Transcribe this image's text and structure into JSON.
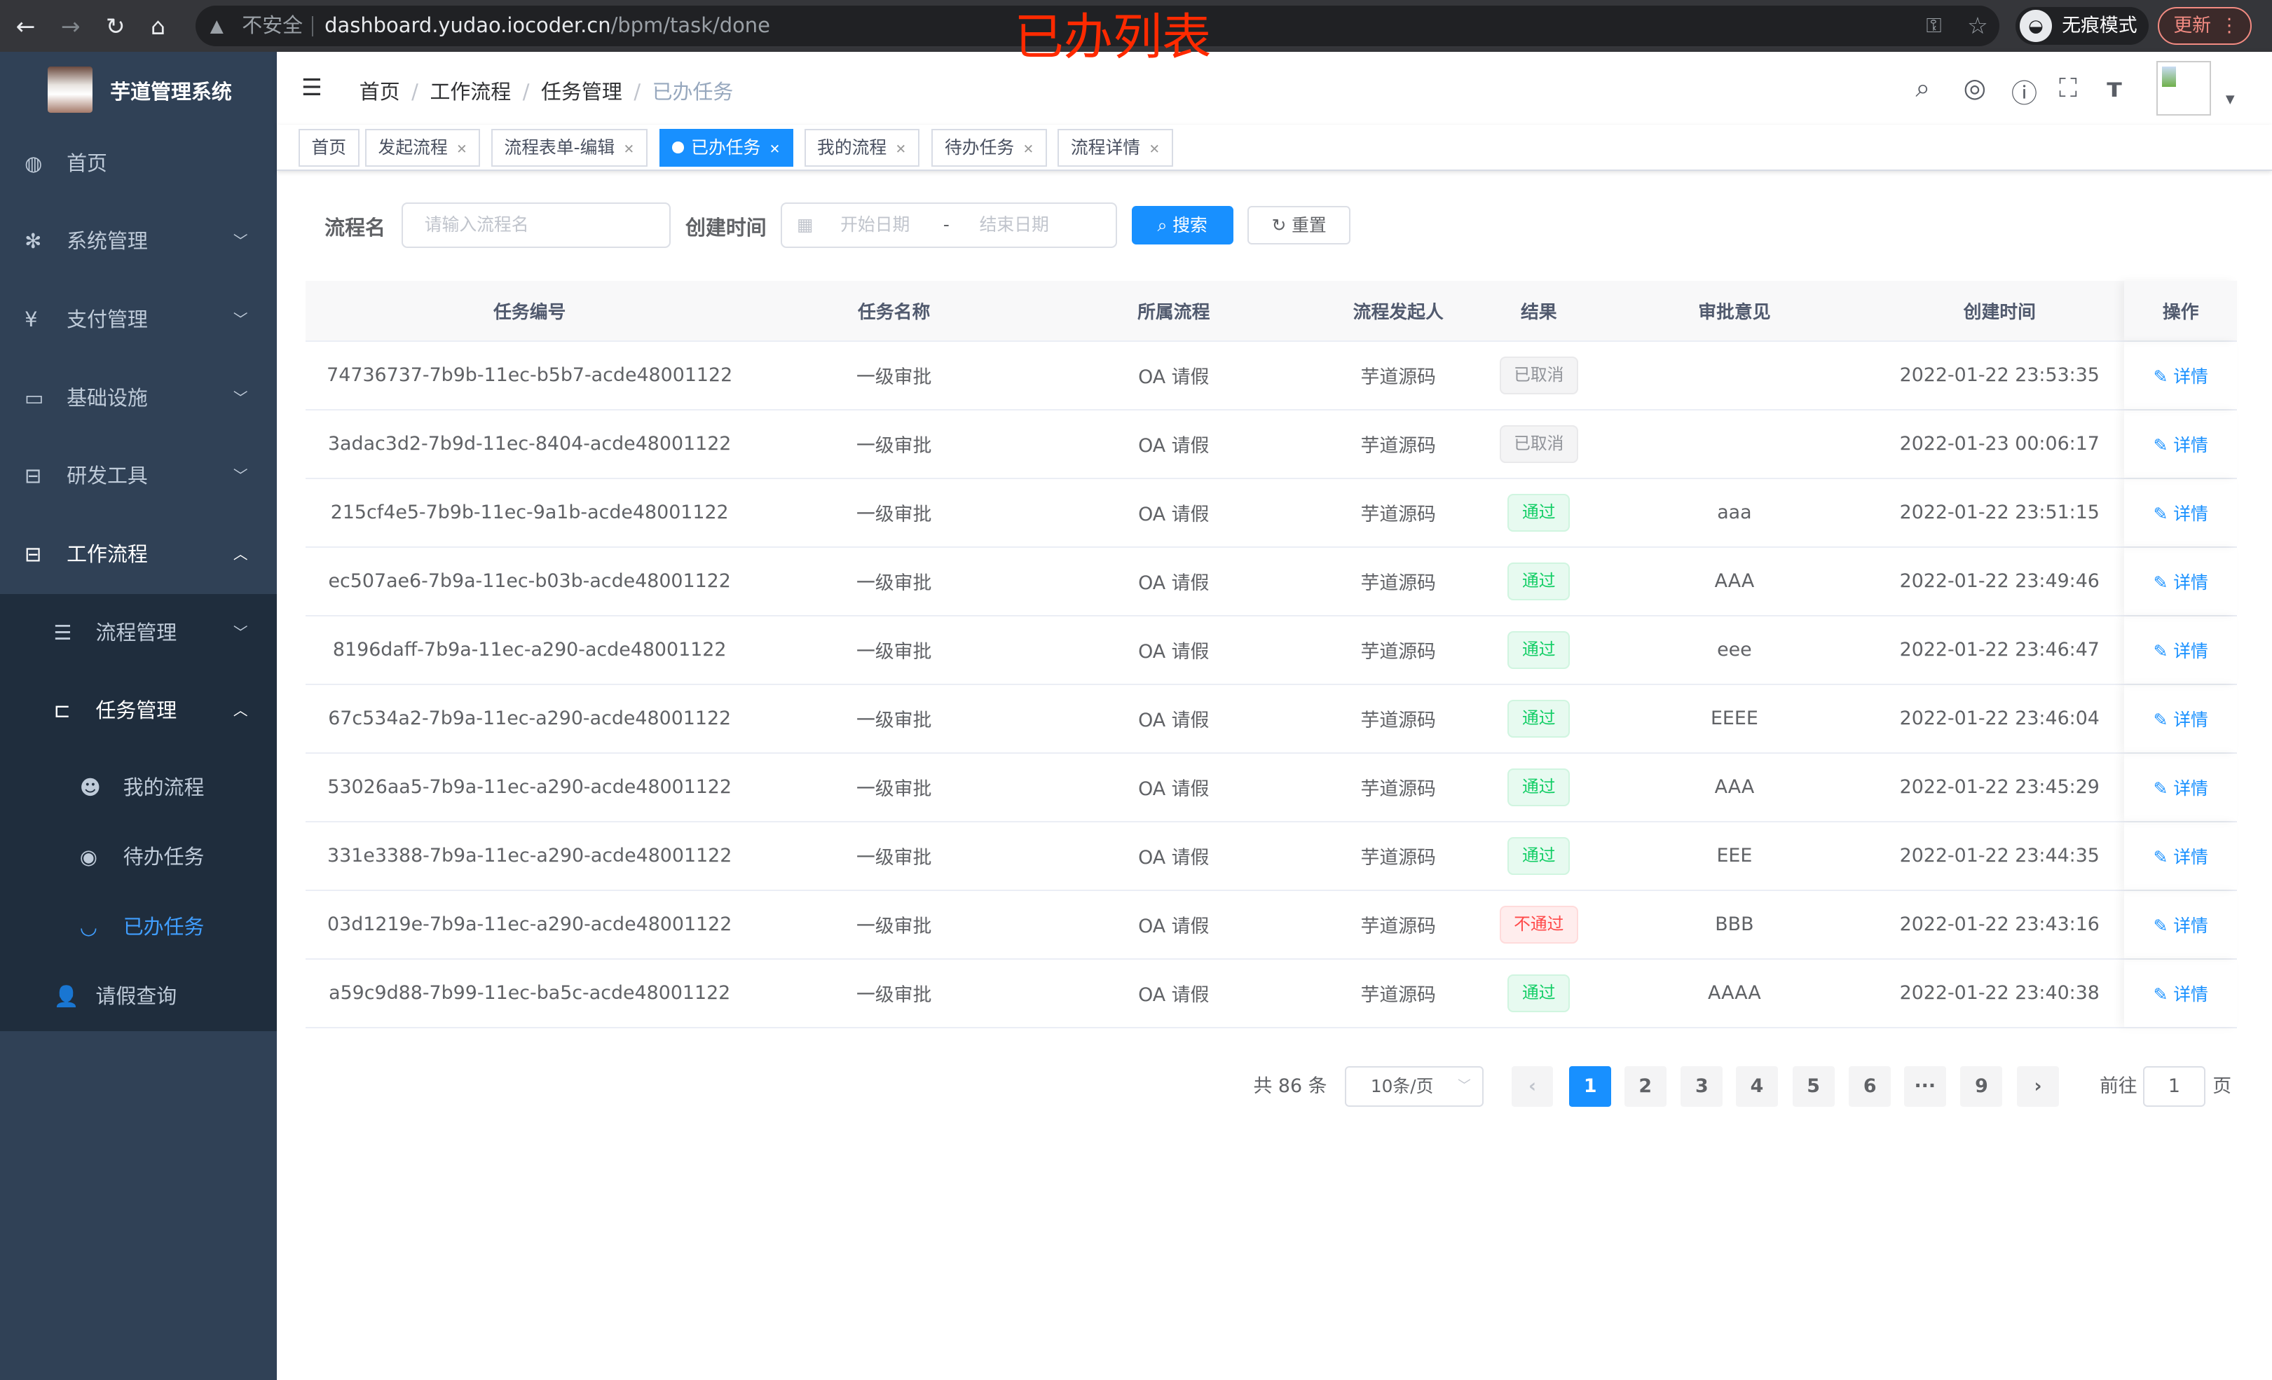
{
  "browser": {
    "insecure": "不安全",
    "url_host": "dashboard.yudao.iocoder.cn",
    "url_path": "/bpm/task/done",
    "incognito": "无痕模式",
    "update": "更新"
  },
  "overlay_title": "已办列表",
  "sidebar": {
    "brand": "芋道管理系统",
    "items": [
      {
        "label": "首页",
        "icon": "dashboard-icon"
      },
      {
        "label": "系统管理",
        "icon": "gear-icon"
      },
      {
        "label": "支付管理",
        "icon": "yen-icon"
      },
      {
        "label": "基础设施",
        "icon": "monitor-icon"
      },
      {
        "label": "研发工具",
        "icon": "toolbox-icon"
      },
      {
        "label": "工作流程",
        "icon": "toolbox-icon"
      }
    ],
    "sub": [
      {
        "label": "流程管理"
      },
      {
        "label": "任务管理"
      },
      {
        "label": "我的流程"
      },
      {
        "label": "待办任务"
      },
      {
        "label": "已办任务"
      },
      {
        "label": "请假查询"
      }
    ]
  },
  "breadcrumb": [
    "首页",
    "工作流程",
    "任务管理",
    "已办任务"
  ],
  "tags": [
    "首页",
    "发起流程",
    "流程表单-编辑",
    "已办任务",
    "我的流程",
    "待办任务",
    "流程详情"
  ],
  "search": {
    "name_label": "流程名",
    "name_placeholder": "请输入流程名",
    "time_label": "创建时间",
    "start_placeholder": "开始日期",
    "range_sep": "-",
    "end_placeholder": "结束日期",
    "search_btn": "搜索",
    "reset_btn": "重置"
  },
  "table": {
    "headers": [
      "任务编号",
      "任务名称",
      "所属流程",
      "流程发起人",
      "结果",
      "审批意见",
      "创建时间",
      "操作"
    ],
    "rows": [
      [
        "74736737-7b9b-11ec-b5b7-acde48001122",
        "一级审批",
        "OA 请假",
        "芋道源码",
        "已取消",
        "",
        "2022-01-22 23:53:35",
        "详情"
      ],
      [
        "3adac3d2-7b9d-11ec-8404-acde48001122",
        "一级审批",
        "OA 请假",
        "芋道源码",
        "已取消",
        "",
        "2022-01-23 00:06:17",
        "详情"
      ],
      [
        "215cf4e5-7b9b-11ec-9a1b-acde48001122",
        "一级审批",
        "OA 请假",
        "芋道源码",
        "通过",
        "aaa",
        "2022-01-22 23:51:15",
        "详情"
      ],
      [
        "ec507ae6-7b9a-11ec-b03b-acde48001122",
        "一级审批",
        "OA 请假",
        "芋道源码",
        "通过",
        "AAA",
        "2022-01-22 23:49:46",
        "详情"
      ],
      [
        "8196daff-7b9a-11ec-a290-acde48001122",
        "一级审批",
        "OA 请假",
        "芋道源码",
        "通过",
        "eee",
        "2022-01-22 23:46:47",
        "详情"
      ],
      [
        "67c534a2-7b9a-11ec-a290-acde48001122",
        "一级审批",
        "OA 请假",
        "芋道源码",
        "通过",
        "EEEE",
        "2022-01-22 23:46:04",
        "详情"
      ],
      [
        "53026aa5-7b9a-11ec-a290-acde48001122",
        "一级审批",
        "OA 请假",
        "芋道源码",
        "通过",
        "AAA",
        "2022-01-22 23:45:29",
        "详情"
      ],
      [
        "331e3388-7b9a-11ec-a290-acde48001122",
        "一级审批",
        "OA 请假",
        "芋道源码",
        "通过",
        "EEE",
        "2022-01-22 23:44:35",
        "详情"
      ],
      [
        "03d1219e-7b9a-11ec-a290-acde48001122",
        "一级审批",
        "OA 请假",
        "芋道源码",
        "不通过",
        "BBB",
        "2022-01-22 23:43:16",
        "详情"
      ],
      [
        "a59c9d88-7b99-11ec-ba5c-acde48001122",
        "一级审批",
        "OA 请假",
        "芋道源码",
        "通过",
        "AAAA",
        "2022-01-22 23:40:38",
        "详情"
      ]
    ]
  },
  "pagination": {
    "total": "共 86 条",
    "page_size": "10条/页",
    "pages": [
      "1",
      "2",
      "3",
      "4",
      "5",
      "6",
      "···",
      "9"
    ],
    "current": "1",
    "goto_label": "前往",
    "goto_value": "1",
    "goto_suffix": "页"
  },
  "colors": {
    "sidebar": "#304156",
    "accent": "#1890ff",
    "pass": "#13ce66",
    "fail": "#ff4949"
  }
}
